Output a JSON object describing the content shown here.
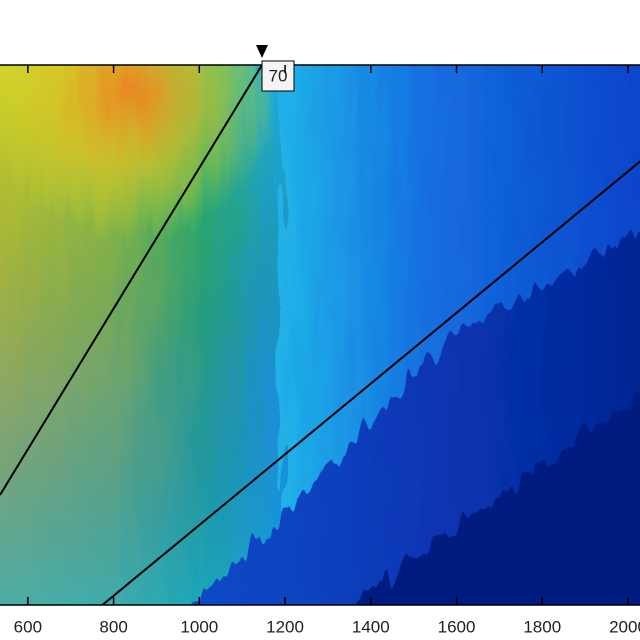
{
  "chart_data": {
    "type": "heatmap",
    "annotation": "70",
    "xlim": [
      535,
      2028
    ],
    "xticks": [
      600,
      800,
      1000,
      1200,
      1400,
      1600,
      1800,
      2000
    ]
  }
}
